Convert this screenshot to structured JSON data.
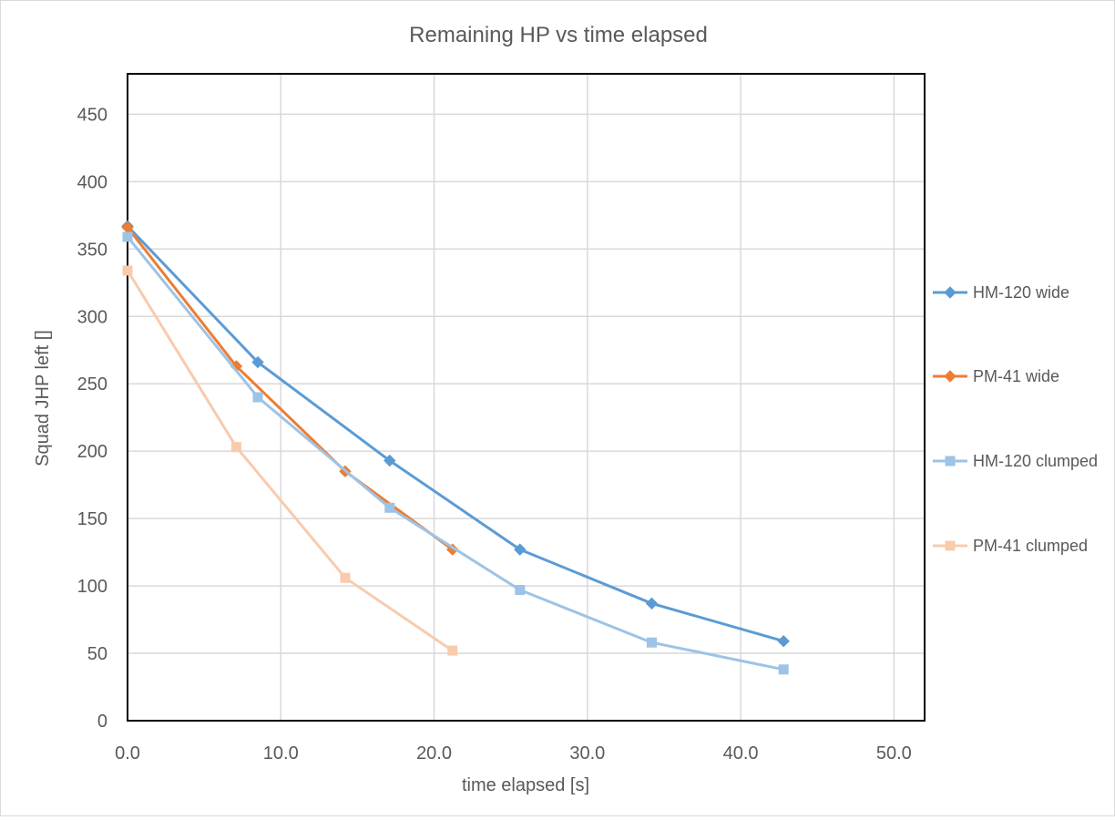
{
  "chart_data": {
    "type": "line",
    "title": "Remaining HP vs time elapsed",
    "xlabel": "time elapsed [s]",
    "ylabel": "Squad JHP left []",
    "xlim": [
      0,
      52
    ],
    "ylim": [
      0,
      480
    ],
    "x_ticks": [
      "0.0",
      "10.0",
      "20.0",
      "30.0",
      "40.0",
      "50.0"
    ],
    "y_ticks": [
      "0",
      "50",
      "100",
      "150",
      "200",
      "250",
      "300",
      "350",
      "400",
      "450"
    ],
    "grid": true,
    "legend_position": "right",
    "series": [
      {
        "name": "HM-120 wide",
        "color": "#5b9bd5",
        "marker": "diamond",
        "x": [
          0,
          8.5,
          17.1,
          25.6,
          34.2,
          42.8
        ],
        "y": [
          367,
          266,
          193,
          127,
          87,
          59
        ]
      },
      {
        "name": "PM-41 wide",
        "color": "#ed7d31",
        "marker": "diamond",
        "x": [
          0,
          7.1,
          14.2,
          21.2
        ],
        "y": [
          366,
          263,
          185,
          127
        ]
      },
      {
        "name": "HM-120 clumped",
        "color": "#9dc3e6",
        "marker": "square",
        "x": [
          0,
          8.5,
          17.1,
          25.6,
          34.2,
          42.8
        ],
        "y": [
          359,
          240,
          158,
          97,
          58,
          38
        ]
      },
      {
        "name": "PM-41 clumped",
        "color": "#f8cbad",
        "marker": "square",
        "x": [
          0,
          7.1,
          14.2,
          21.2
        ],
        "y": [
          334,
          203,
          106,
          52
        ]
      }
    ]
  }
}
